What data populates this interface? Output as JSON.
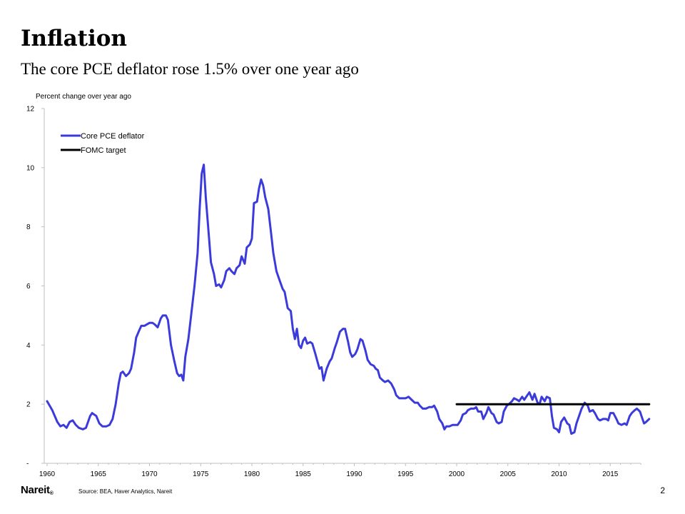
{
  "slide": {
    "title": "Inflation",
    "subtitle": "The core PCE deflator rose 1.5% over one year ago",
    "source": "Source: BEA, Haver Analytics, Nareit",
    "logo": "Nareit",
    "logo_mark": "®",
    "page_number": "2"
  },
  "colors": {
    "core_pce": "#3b3bdc",
    "fomc": "#000000",
    "axis": "#bfbfbf",
    "text": "#000000"
  },
  "chart_data": {
    "type": "line",
    "title": "",
    "ylabel": "Percent change over year ago",
    "xlabel": "",
    "xlim": [
      1960,
      2018
    ],
    "ylim": [
      0,
      12
    ],
    "x_ticks": [
      1960,
      1965,
      1970,
      1975,
      1980,
      1985,
      1990,
      1995,
      2000,
      2005,
      2010,
      2015
    ],
    "y_ticks": [
      "-",
      "2",
      "4",
      "6",
      "8",
      "10",
      "12"
    ],
    "y_tick_values": [
      0,
      2,
      4,
      6,
      8,
      10,
      12
    ],
    "grid": false,
    "legend_position": "top-left",
    "series": [
      {
        "name": "Core PCE deflator",
        "color": "#3b3bdc",
        "points": [
          [
            1960.0,
            2.1
          ],
          [
            1960.5,
            1.8
          ],
          [
            1961.0,
            1.4
          ],
          [
            1961.3,
            1.25
          ],
          [
            1961.6,
            1.3
          ],
          [
            1961.9,
            1.2
          ],
          [
            1962.2,
            1.4
          ],
          [
            1962.5,
            1.45
          ],
          [
            1962.8,
            1.3
          ],
          [
            1963.1,
            1.2
          ],
          [
            1963.5,
            1.15
          ],
          [
            1963.8,
            1.2
          ],
          [
            1964.2,
            1.6
          ],
          [
            1964.4,
            1.7
          ],
          [
            1964.8,
            1.6
          ],
          [
            1965.1,
            1.35
          ],
          [
            1965.4,
            1.25
          ],
          [
            1965.8,
            1.25
          ],
          [
            1966.1,
            1.3
          ],
          [
            1966.4,
            1.5
          ],
          [
            1966.7,
            2.0
          ],
          [
            1967.0,
            2.7
          ],
          [
            1967.2,
            3.05
          ],
          [
            1967.4,
            3.1
          ],
          [
            1967.7,
            2.95
          ],
          [
            1968.0,
            3.05
          ],
          [
            1968.2,
            3.2
          ],
          [
            1968.5,
            3.75
          ],
          [
            1968.7,
            4.25
          ],
          [
            1969.0,
            4.5
          ],
          [
            1969.2,
            4.65
          ],
          [
            1969.5,
            4.65
          ],
          [
            1970.0,
            4.75
          ],
          [
            1970.3,
            4.75
          ],
          [
            1970.5,
            4.7
          ],
          [
            1970.8,
            4.6
          ],
          [
            1971.1,
            4.9
          ],
          [
            1971.3,
            5.0
          ],
          [
            1971.6,
            5.0
          ],
          [
            1971.8,
            4.85
          ],
          [
            1972.1,
            4.0
          ],
          [
            1972.4,
            3.5
          ],
          [
            1972.7,
            3.05
          ],
          [
            1972.9,
            2.95
          ],
          [
            1973.1,
            3.0
          ],
          [
            1973.3,
            2.8
          ],
          [
            1973.5,
            3.6
          ],
          [
            1973.8,
            4.2
          ],
          [
            1974.1,
            5.1
          ],
          [
            1974.4,
            6.0
          ],
          [
            1974.7,
            7.1
          ],
          [
            1974.9,
            8.6
          ],
          [
            1975.1,
            9.8
          ],
          [
            1975.3,
            10.1
          ],
          [
            1975.5,
            9.0
          ],
          [
            1975.8,
            7.7
          ],
          [
            1976.0,
            6.8
          ],
          [
            1976.3,
            6.4
          ],
          [
            1976.5,
            6.0
          ],
          [
            1976.8,
            6.05
          ],
          [
            1977.0,
            5.95
          ],
          [
            1977.3,
            6.2
          ],
          [
            1977.5,
            6.5
          ],
          [
            1977.8,
            6.6
          ],
          [
            1978.0,
            6.5
          ],
          [
            1978.3,
            6.4
          ],
          [
            1978.5,
            6.6
          ],
          [
            1978.8,
            6.7
          ],
          [
            1979.0,
            7.0
          ],
          [
            1979.3,
            6.75
          ],
          [
            1979.5,
            7.3
          ],
          [
            1979.8,
            7.4
          ],
          [
            1980.0,
            7.6
          ],
          [
            1980.2,
            8.8
          ],
          [
            1980.5,
            8.85
          ],
          [
            1980.7,
            9.3
          ],
          [
            1980.9,
            9.6
          ],
          [
            1981.1,
            9.4
          ],
          [
            1981.3,
            9.0
          ],
          [
            1981.6,
            8.6
          ],
          [
            1981.9,
            7.7
          ],
          [
            1982.1,
            7.1
          ],
          [
            1982.4,
            6.5
          ],
          [
            1982.7,
            6.2
          ],
          [
            1983.0,
            5.9
          ],
          [
            1983.2,
            5.8
          ],
          [
            1983.5,
            5.25
          ],
          [
            1983.8,
            5.15
          ],
          [
            1984.0,
            4.55
          ],
          [
            1984.2,
            4.2
          ],
          [
            1984.4,
            4.55
          ],
          [
            1984.6,
            4.0
          ],
          [
            1984.8,
            3.9
          ],
          [
            1985.0,
            4.15
          ],
          [
            1985.2,
            4.25
          ],
          [
            1985.4,
            4.05
          ],
          [
            1985.7,
            4.1
          ],
          [
            1985.9,
            4.05
          ],
          [
            1986.2,
            3.7
          ],
          [
            1986.4,
            3.45
          ],
          [
            1986.6,
            3.2
          ],
          [
            1986.8,
            3.25
          ],
          [
            1987.0,
            2.8
          ],
          [
            1987.3,
            3.2
          ],
          [
            1987.6,
            3.45
          ],
          [
            1987.8,
            3.55
          ],
          [
            1988.1,
            3.9
          ],
          [
            1988.3,
            4.1
          ],
          [
            1988.6,
            4.45
          ],
          [
            1988.9,
            4.55
          ],
          [
            1989.1,
            4.55
          ],
          [
            1989.4,
            4.1
          ],
          [
            1989.6,
            3.75
          ],
          [
            1989.8,
            3.6
          ],
          [
            1990.1,
            3.7
          ],
          [
            1990.3,
            3.85
          ],
          [
            1990.6,
            4.2
          ],
          [
            1990.8,
            4.15
          ],
          [
            1991.1,
            3.8
          ],
          [
            1991.3,
            3.5
          ],
          [
            1991.6,
            3.35
          ],
          [
            1991.9,
            3.3
          ],
          [
            1992.1,
            3.2
          ],
          [
            1992.3,
            3.15
          ],
          [
            1992.5,
            2.9
          ],
          [
            1992.8,
            2.8
          ],
          [
            1993.0,
            2.75
          ],
          [
            1993.3,
            2.8
          ],
          [
            1993.6,
            2.7
          ],
          [
            1993.9,
            2.5
          ],
          [
            1994.1,
            2.3
          ],
          [
            1994.4,
            2.2
          ],
          [
            1994.7,
            2.2
          ],
          [
            1995.0,
            2.2
          ],
          [
            1995.3,
            2.25
          ],
          [
            1995.6,
            2.15
          ],
          [
            1995.9,
            2.05
          ],
          [
            1996.2,
            2.05
          ],
          [
            1996.4,
            1.95
          ],
          [
            1996.7,
            1.85
          ],
          [
            1997.0,
            1.85
          ],
          [
            1997.3,
            1.9
          ],
          [
            1997.6,
            1.9
          ],
          [
            1997.8,
            1.95
          ],
          [
            1998.1,
            1.75
          ],
          [
            1998.3,
            1.5
          ],
          [
            1998.6,
            1.35
          ],
          [
            1998.8,
            1.15
          ],
          [
            1999.0,
            1.25
          ],
          [
            1999.3,
            1.25
          ],
          [
            1999.6,
            1.3
          ],
          [
            1999.9,
            1.3
          ],
          [
            2000.1,
            1.3
          ],
          [
            2000.4,
            1.45
          ],
          [
            2000.6,
            1.65
          ],
          [
            2000.9,
            1.7
          ],
          [
            2001.1,
            1.8
          ],
          [
            2001.4,
            1.85
          ],
          [
            2001.7,
            1.85
          ],
          [
            2001.9,
            1.9
          ],
          [
            2002.1,
            1.75
          ],
          [
            2002.4,
            1.75
          ],
          [
            2002.6,
            1.5
          ],
          [
            2002.9,
            1.7
          ],
          [
            2003.1,
            1.9
          ],
          [
            2003.4,
            1.7
          ],
          [
            2003.6,
            1.65
          ],
          [
            2003.9,
            1.4
          ],
          [
            2004.1,
            1.35
          ],
          [
            2004.4,
            1.4
          ],
          [
            2004.6,
            1.75
          ],
          [
            2004.9,
            1.95
          ],
          [
            2005.1,
            2.0
          ],
          [
            2005.4,
            2.1
          ],
          [
            2005.6,
            2.2
          ],
          [
            2005.9,
            2.15
          ],
          [
            2006.1,
            2.1
          ],
          [
            2006.4,
            2.25
          ],
          [
            2006.6,
            2.15
          ],
          [
            2006.9,
            2.3
          ],
          [
            2007.1,
            2.4
          ],
          [
            2007.4,
            2.15
          ],
          [
            2007.6,
            2.35
          ],
          [
            2007.9,
            2.05
          ],
          [
            2008.1,
            2.0
          ],
          [
            2008.3,
            2.25
          ],
          [
            2008.6,
            2.1
          ],
          [
            2008.8,
            2.25
          ],
          [
            2009.1,
            2.2
          ],
          [
            2009.3,
            1.6
          ],
          [
            2009.5,
            1.2
          ],
          [
            2009.8,
            1.15
          ],
          [
            2010.0,
            1.05
          ],
          [
            2010.2,
            1.4
          ],
          [
            2010.5,
            1.55
          ],
          [
            2010.8,
            1.35
          ],
          [
            2011.0,
            1.3
          ],
          [
            2011.2,
            1.0
          ],
          [
            2011.5,
            1.05
          ],
          [
            2011.7,
            1.35
          ],
          [
            2012.0,
            1.65
          ],
          [
            2012.2,
            1.85
          ],
          [
            2012.5,
            2.05
          ],
          [
            2012.8,
            1.95
          ],
          [
            2013.0,
            1.75
          ],
          [
            2013.3,
            1.8
          ],
          [
            2013.5,
            1.7
          ],
          [
            2013.8,
            1.5
          ],
          [
            2014.0,
            1.45
          ],
          [
            2014.3,
            1.5
          ],
          [
            2014.6,
            1.5
          ],
          [
            2014.8,
            1.45
          ],
          [
            2015.0,
            1.7
          ],
          [
            2015.3,
            1.7
          ],
          [
            2015.6,
            1.5
          ],
          [
            2015.8,
            1.35
          ],
          [
            2016.1,
            1.3
          ],
          [
            2016.4,
            1.35
          ],
          [
            2016.6,
            1.3
          ],
          [
            2016.9,
            1.6
          ],
          [
            2017.1,
            1.7
          ],
          [
            2017.4,
            1.8
          ],
          [
            2017.6,
            1.85
          ],
          [
            2017.9,
            1.75
          ],
          [
            2018.1,
            1.55
          ],
          [
            2018.3,
            1.35
          ],
          [
            2018.5,
            1.4
          ],
          [
            2018.8,
            1.5
          ]
        ]
      },
      {
        "name": "FOMC target",
        "color": "#000000",
        "points": [
          [
            2000.0,
            2.0
          ],
          [
            2018.8,
            2.0
          ]
        ]
      }
    ]
  }
}
